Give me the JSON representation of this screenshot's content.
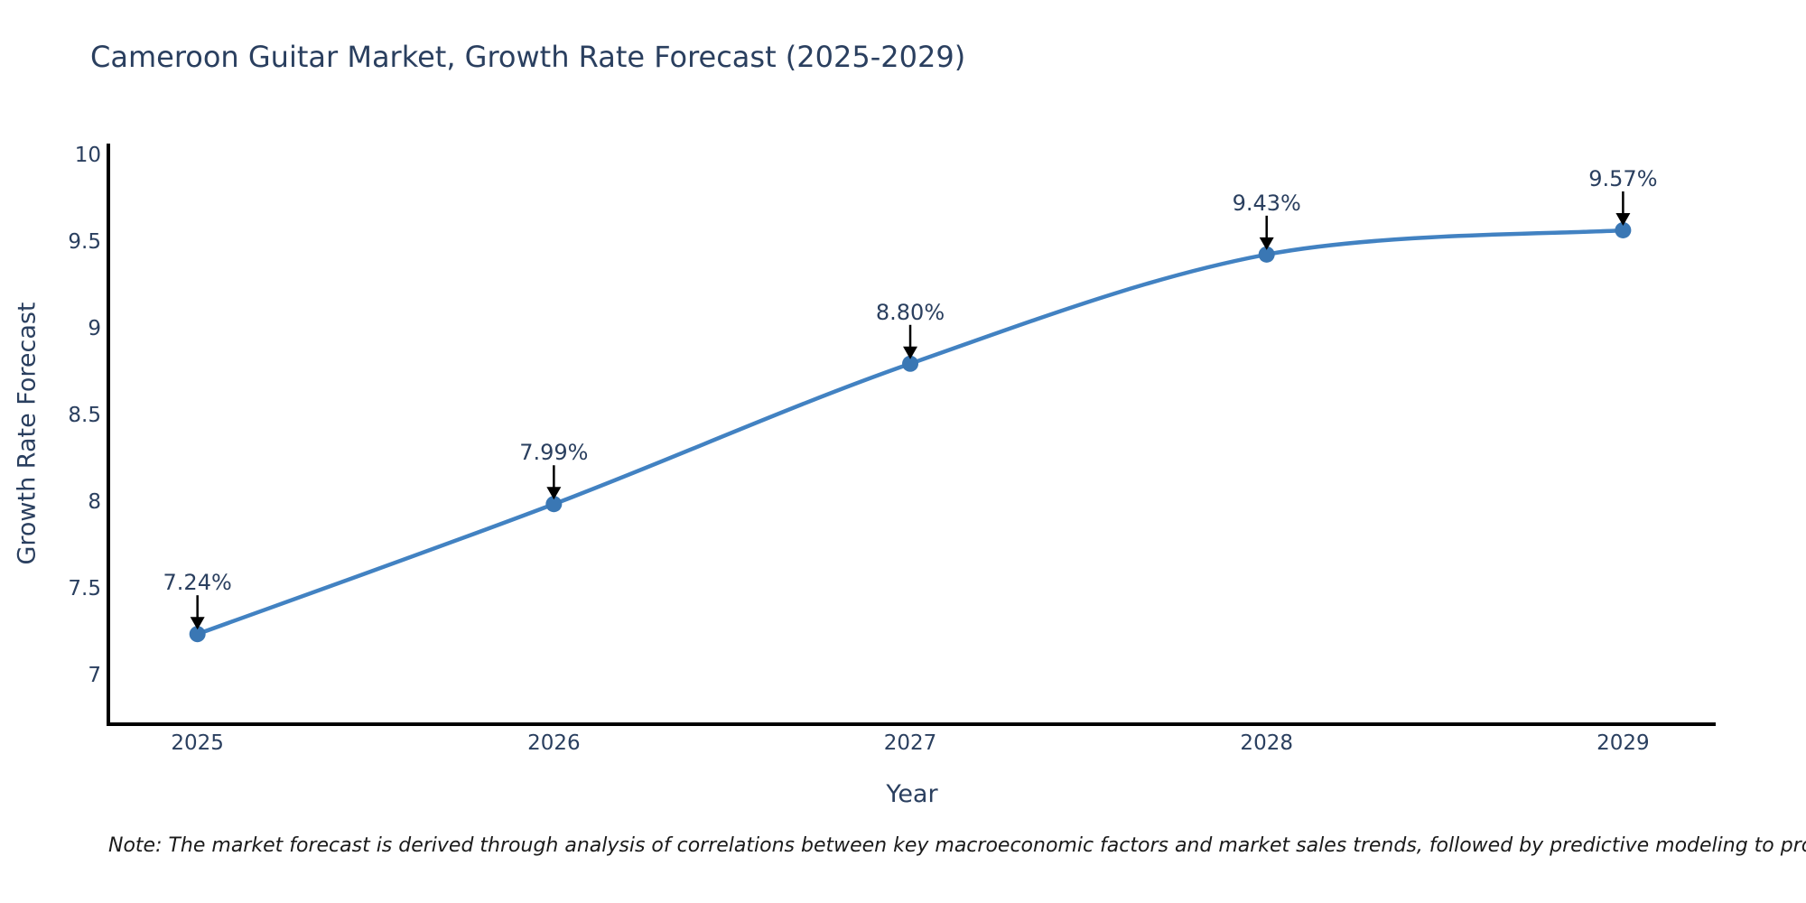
{
  "chart_data": {
    "type": "line",
    "title": "Cameroon Guitar Market, Growth Rate Forecast (2025-2029)",
    "xlabel": "Year",
    "ylabel": "Growth Rate Forecast",
    "x": [
      2025,
      2026,
      2027,
      2028,
      2029
    ],
    "values": [
      7.24,
      7.99,
      8.8,
      9.43,
      9.57
    ],
    "point_labels": [
      "7.24%",
      "7.99%",
      "8.80%",
      "9.43%",
      "9.57%"
    ],
    "xticks": [
      "2025",
      "2026",
      "2027",
      "2028",
      "2029"
    ],
    "yticks": [
      7,
      7.5,
      8,
      8.5,
      9,
      9.5,
      10
    ],
    "ytick_labels": [
      "7",
      "7.5",
      "8",
      "8.5",
      "9",
      "9.5",
      "10"
    ],
    "xlim": [
      2024.75,
      2029.26
    ],
    "ylim": [
      6.72,
      10.07
    ],
    "grid": false,
    "line_shape": "spline",
    "legend": "none",
    "note": "Note: The market forecast is derived through analysis of correlations between key macroeconomic factors and market sales trends, followed by predictive modeling to project future sales",
    "colors": {
      "line": "#4282c2",
      "marker": "#3a77b4",
      "axis": "#000000",
      "text": "#2a3f5f",
      "note_text": "#1a1a1a",
      "arrow": "#000000",
      "background": "#ffffff"
    }
  }
}
